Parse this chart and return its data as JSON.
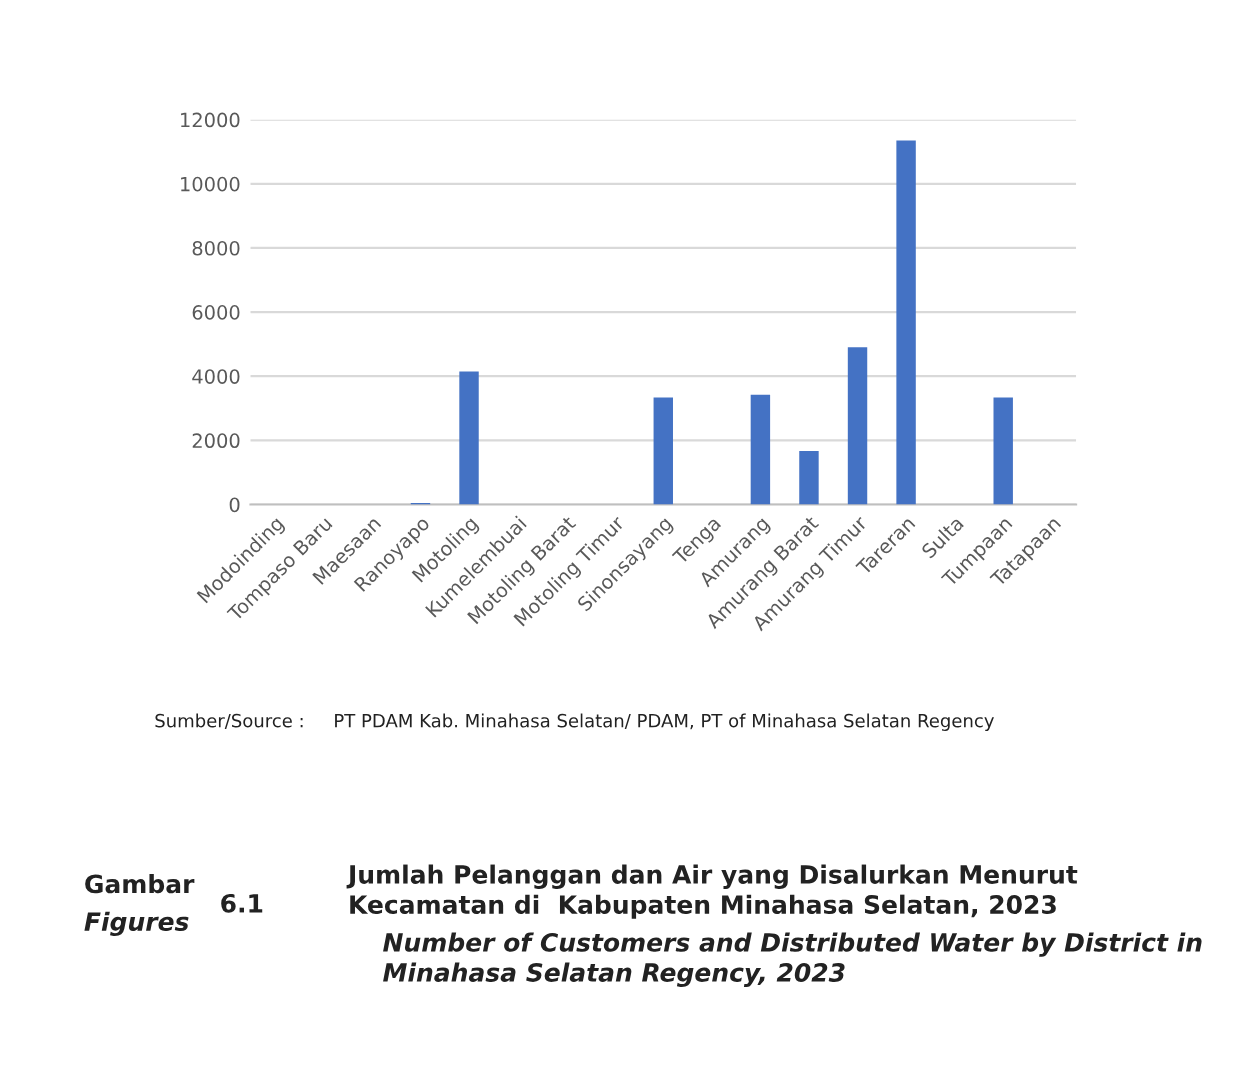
{
  "chart_data": {
    "type": "bar",
    "title": "Jumlah Pelanggan dan Air yang Disalurkan Menurut\nKecamatan di  Kabupaten Minahasa Selatan, 2023",
    "subtitle": "Number of Customers and Distributed Water by District in\nMinahasa Selatan Regency, 2023",
    "categories": [
      "Modoinding",
      "Tompaso Baru",
      "Maesaan",
      "Ranoyapo",
      "Motoling",
      "Kumelembuai",
      "Motoling Barat",
      "Motoling Timur",
      "Sinonsayang",
      "Tenga",
      "Amurang",
      "Amurang Barat",
      "Amurang Timur",
      "Tareran",
      "Sulta",
      "Tumpaan",
      "Tatapaan"
    ],
    "values": [
      0,
      0,
      0,
      50,
      4150,
      0,
      0,
      0,
      3340,
      0,
      3420,
      1670,
      4900,
      11350,
      0,
      3340,
      0
    ],
    "color": "#4472c4",
    "ylim": [
      0,
      12000
    ],
    "yticks": [
      0,
      2000,
      4000,
      6000,
      8000,
      10000,
      12000
    ],
    "grid": "y",
    "annotations": [
      "Sumber/Source :     PT PDAM Kab. Minahasa Selatan/ PDAM, PT of Minahasa Selatan Regency",
      "Gambar",
      "Figures",
      "6.1"
    ]
  }
}
